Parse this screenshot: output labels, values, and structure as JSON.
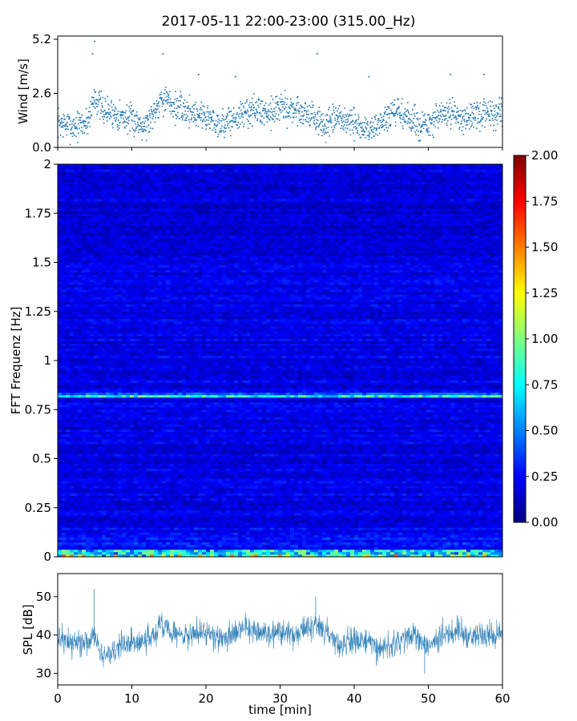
{
  "title": "2017-05-11 22:00-23:00 (315.00_Hz)",
  "chart_data": [
    {
      "type": "scatter",
      "name": "wind",
      "ylabel": "Wind [m/s]",
      "xlim": [
        0,
        60
      ],
      "ylim": [
        0,
        5.2
      ],
      "yticks": [
        "0.0",
        "2.6",
        "5.2"
      ],
      "color": "#1f77b4",
      "trend": {
        "x": [
          0,
          2,
          4,
          5,
          6,
          8,
          10,
          12,
          14,
          16,
          18,
          20,
          22,
          24,
          26,
          28,
          30,
          32,
          34,
          36,
          38,
          40,
          42,
          44,
          46,
          48,
          50,
          52,
          54,
          56,
          58,
          60
        ],
        "y": [
          1.2,
          1.0,
          1.2,
          2.5,
          1.8,
          1.6,
          1.3,
          1.1,
          2.4,
          1.9,
          1.7,
          1.5,
          1.1,
          1.4,
          1.8,
          1.7,
          1.9,
          1.8,
          1.6,
          1.0,
          1.4,
          1.1,
          0.8,
          1.3,
          1.7,
          1.2,
          1.0,
          1.6,
          1.5,
          1.4,
          1.6,
          1.7
        ]
      },
      "spread": 0.7,
      "outliers": [
        [
          5.0,
          5.1
        ],
        [
          4.7,
          4.5
        ],
        [
          14.2,
          4.5
        ],
        [
          35.0,
          4.5
        ],
        [
          19.0,
          3.5
        ],
        [
          24.0,
          3.4
        ],
        [
          42.0,
          3.4
        ],
        [
          53.0,
          3.5
        ],
        [
          57.5,
          3.5
        ]
      ]
    },
    {
      "type": "heatmap",
      "name": "spectrogram",
      "ylabel": "FFT Frequenz [Hz]",
      "xlim": [
        0,
        60
      ],
      "ylim": [
        0,
        2
      ],
      "yticks": [
        "0",
        "0.25",
        "0.5",
        "0.75",
        "1",
        "1.25",
        "1.5",
        "1.75",
        "2"
      ],
      "colorbar": {
        "range": [
          0,
          2
        ],
        "ticks": [
          "0.00",
          "0.25",
          "0.50",
          "0.75",
          "1.00",
          "1.25",
          "1.50",
          "1.75",
          "2.00"
        ],
        "colormap": "jet"
      },
      "features": {
        "background_level": 0.2,
        "line_frequency_hz": 0.81,
        "line_level": 0.8,
        "low_frequency_level": 0.9
      }
    },
    {
      "type": "line",
      "name": "spl",
      "ylabel": "SPL [dB]",
      "xlabel": "time [min]",
      "xlim": [
        0,
        60
      ],
      "ylim": [
        27,
        56
      ],
      "yticks": [
        "30",
        "40",
        "50"
      ],
      "xticks": [
        "0",
        "10",
        "20",
        "30",
        "40",
        "50",
        "60"
      ],
      "color": "#1f77b4",
      "trend": {
        "x": [
          0,
          2,
          4,
          5,
          6,
          8,
          10,
          12,
          14,
          16,
          18,
          20,
          22,
          24,
          26,
          28,
          30,
          32,
          34,
          35,
          36,
          38,
          40,
          42,
          44,
          46,
          48,
          50,
          52,
          54,
          56,
          58,
          60
        ],
        "y": [
          39,
          38,
          39,
          40,
          34,
          37,
          38,
          39,
          42,
          40,
          40,
          41,
          39,
          41,
          42,
          40,
          41,
          40,
          42,
          43,
          41,
          37,
          39,
          38,
          36,
          38,
          40,
          37,
          40,
          41,
          40,
          40,
          40
        ]
      },
      "spread": 3.5,
      "spikes": [
        [
          4.9,
          52
        ],
        [
          34.8,
          50
        ],
        [
          43.0,
          32
        ],
        [
          49.5,
          30
        ]
      ]
    }
  ]
}
